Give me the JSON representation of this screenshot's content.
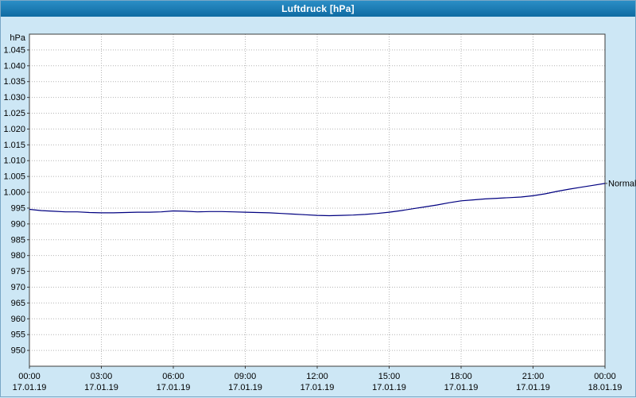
{
  "window": {
    "title": "Luftdruck [hPa]"
  },
  "colors": {
    "titlebar": "#1478ae",
    "background": "#cde7f5",
    "plot_bg": "#ffffff",
    "grid": "#b4b4b4",
    "axis": "#3c3c3c",
    "line": "#000080",
    "text": "#000000"
  },
  "chart_data": {
    "type": "line",
    "title": "Luftdruck [hPa]",
    "ylabel": "hPa",
    "annotation": "Normal",
    "grid": true,
    "line_color": "#000080",
    "xlim": [
      0,
      24
    ],
    "ylim": [
      945,
      1050
    ],
    "y_ticks": [
      {
        "value": 1045,
        "label": "1.045"
      },
      {
        "value": 1040,
        "label": "1.040"
      },
      {
        "value": 1035,
        "label": "1.035"
      },
      {
        "value": 1030,
        "label": "1.030"
      },
      {
        "value": 1025,
        "label": "1.025"
      },
      {
        "value": 1020,
        "label": "1.020"
      },
      {
        "value": 1015,
        "label": "1.015"
      },
      {
        "value": 1010,
        "label": "1.010"
      },
      {
        "value": 1005,
        "label": "1.005"
      },
      {
        "value": 1000,
        "label": "1.000"
      },
      {
        "value": 995,
        "label": "995"
      },
      {
        "value": 990,
        "label": "990"
      },
      {
        "value": 985,
        "label": "985"
      },
      {
        "value": 980,
        "label": "980"
      },
      {
        "value": 975,
        "label": "975"
      },
      {
        "value": 970,
        "label": "970"
      },
      {
        "value": 965,
        "label": "965"
      },
      {
        "value": 960,
        "label": "960"
      },
      {
        "value": 955,
        "label": "955"
      },
      {
        "value": 950,
        "label": "950"
      }
    ],
    "x_ticks": [
      {
        "hour": 0,
        "time": "00:00",
        "date": "17.01.19"
      },
      {
        "hour": 3,
        "time": "03:00",
        "date": "17.01.19"
      },
      {
        "hour": 6,
        "time": "06:00",
        "date": "17.01.19"
      },
      {
        "hour": 9,
        "time": "09:00",
        "date": "17.01.19"
      },
      {
        "hour": 12,
        "time": "12:00",
        "date": "17.01.19"
      },
      {
        "hour": 15,
        "time": "15:00",
        "date": "17.01.19"
      },
      {
        "hour": 18,
        "time": "18:00",
        "date": "17.01.19"
      },
      {
        "hour": 21,
        "time": "21:00",
        "date": "17.01.19"
      },
      {
        "hour": 24,
        "time": "00:00",
        "date": "18.01.19"
      }
    ],
    "series": [
      {
        "name": "Luftdruck",
        "points": [
          [
            0,
            994.6
          ],
          [
            0.5,
            994.2
          ],
          [
            1,
            994.0
          ],
          [
            1.5,
            993.8
          ],
          [
            2,
            993.8
          ],
          [
            2.5,
            993.6
          ],
          [
            3,
            993.5
          ],
          [
            3.5,
            993.5
          ],
          [
            4,
            993.6
          ],
          [
            4.5,
            993.7
          ],
          [
            5,
            993.7
          ],
          [
            5.5,
            993.8
          ],
          [
            6,
            994.1
          ],
          [
            6.5,
            994.0
          ],
          [
            7,
            993.8
          ],
          [
            7.5,
            993.9
          ],
          [
            8,
            993.9
          ],
          [
            8.5,
            993.8
          ],
          [
            9,
            993.7
          ],
          [
            9.5,
            993.6
          ],
          [
            10,
            993.5
          ],
          [
            10.5,
            993.3
          ],
          [
            11,
            993.1
          ],
          [
            11.5,
            992.9
          ],
          [
            12,
            992.7
          ],
          [
            12.5,
            992.6
          ],
          [
            13,
            992.7
          ],
          [
            13.5,
            992.8
          ],
          [
            14,
            993.0
          ],
          [
            14.5,
            993.3
          ],
          [
            15,
            993.7
          ],
          [
            15.5,
            994.2
          ],
          [
            16,
            994.8
          ],
          [
            16.5,
            995.4
          ],
          [
            17,
            996.0
          ],
          [
            17.5,
            996.7
          ],
          [
            18,
            997.3
          ],
          [
            18.5,
            997.6
          ],
          [
            19,
            997.9
          ],
          [
            19.5,
            998.1
          ],
          [
            20,
            998.3
          ],
          [
            20.5,
            998.5
          ],
          [
            21,
            998.9
          ],
          [
            21.5,
            999.5
          ],
          [
            22,
            1000.3
          ],
          [
            22.5,
            1001.0
          ],
          [
            23,
            1001.6
          ],
          [
            23.5,
            1002.2
          ],
          [
            24,
            1002.8
          ]
        ]
      }
    ]
  }
}
